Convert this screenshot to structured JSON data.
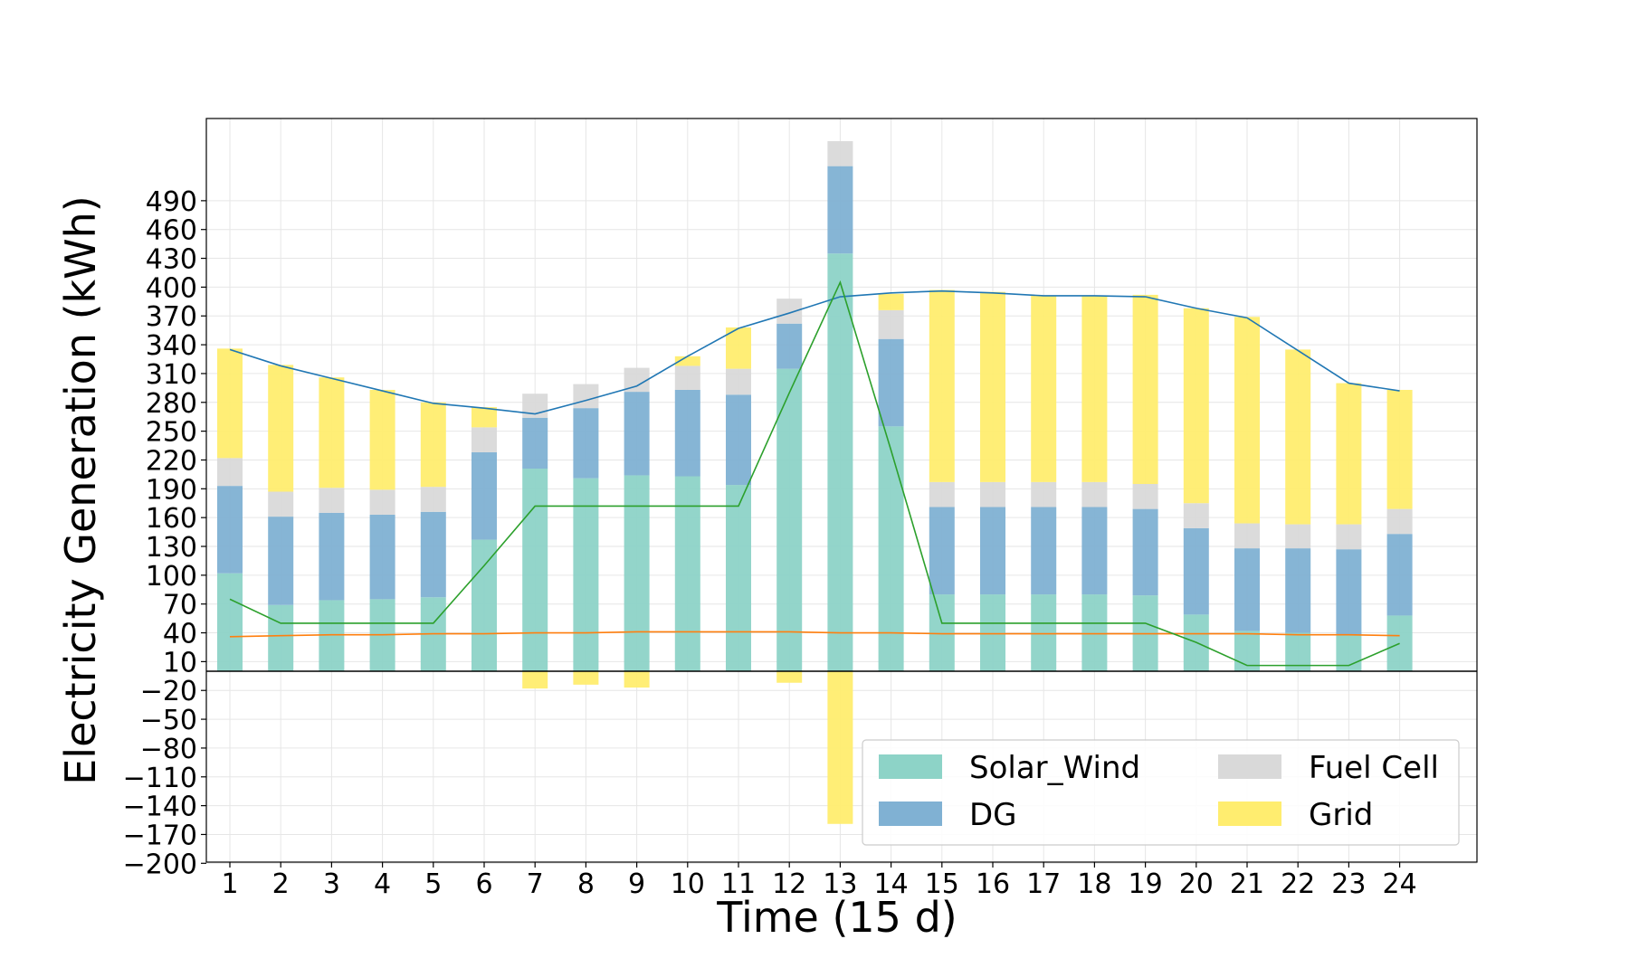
{
  "chart_data": {
    "type": "bar",
    "stacked": true,
    "title": "",
    "xlabel": "Time (15 d)",
    "ylabel": "Electricity Generation (kWh)",
    "categories": [
      "1",
      "2",
      "3",
      "4",
      "5",
      "6",
      "7",
      "8",
      "9",
      "10",
      "11",
      "12",
      "13",
      "14",
      "15",
      "16",
      "17",
      "18",
      "19",
      "20",
      "21",
      "22",
      "23",
      "24"
    ],
    "ylim": [
      -200,
      580
    ],
    "yticks": [
      -200,
      -170,
      -140,
      -110,
      -80,
      -50,
      -20,
      10,
      40,
      70,
      100,
      130,
      160,
      190,
      220,
      250,
      280,
      310,
      340,
      370,
      400,
      430,
      460,
      490
    ],
    "grid": true,
    "legend_position": "lower-right",
    "series": [
      {
        "name": "Solar_Wind",
        "color": "#8dd3c7",
        "values": [
          102,
          69,
          74,
          75,
          77,
          137,
          211,
          201,
          204,
          203,
          194,
          315,
          435,
          255,
          80,
          80,
          80,
          80,
          79,
          59,
          42,
          40,
          38,
          58
        ]
      },
      {
        "name": "DG",
        "color": "#80b1d3",
        "values": [
          91,
          92,
          91,
          88,
          89,
          91,
          53,
          73,
          87,
          90,
          94,
          47,
          91,
          91,
          91,
          91,
          91,
          91,
          90,
          90,
          86,
          88,
          89,
          85
        ]
      },
      {
        "name": "Fuel Cell",
        "color": "#d9d9d9",
        "values": [
          29,
          26,
          26,
          26,
          26,
          26,
          25,
          25,
          25,
          25,
          27,
          26,
          26,
          30,
          26,
          26,
          26,
          26,
          26,
          26,
          26,
          25,
          26,
          26
        ]
      },
      {
        "name": "Grid",
        "color": "#ffed6f",
        "values": [
          114,
          132,
          115,
          104,
          88,
          21,
          -18,
          -14,
          -17,
          10,
          43,
          -12,
          -159,
          17,
          200,
          198,
          194,
          194,
          197,
          203,
          215,
          182,
          147,
          124
        ]
      }
    ],
    "lines": [
      {
        "color": "#2077b4",
        "values": [
          335,
          318,
          305,
          292,
          279,
          274,
          268,
          282,
          297,
          328,
          357,
          373,
          390,
          394,
          396,
          394,
          391,
          391,
          390,
          378,
          368,
          334,
          300,
          292
        ]
      },
      {
        "color": "#ff7f0e",
        "values": [
          36,
          37,
          38,
          38,
          39,
          39,
          40,
          40,
          41,
          41,
          41,
          41,
          40,
          40,
          39,
          39,
          39,
          39,
          39,
          39,
          39,
          38,
          38,
          37
        ]
      },
      {
        "color": "#2ca02c",
        "values": [
          75,
          50,
          50,
          50,
          50,
          110,
          172,
          172,
          172,
          172,
          172,
          290,
          405,
          230,
          50,
          50,
          50,
          50,
          50,
          30,
          6,
          6,
          6,
          29
        ]
      }
    ]
  }
}
